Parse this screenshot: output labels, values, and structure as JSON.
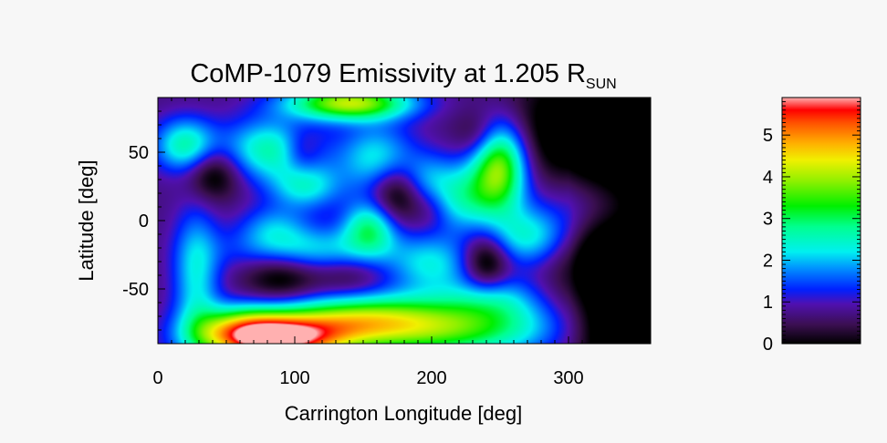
{
  "chart_data": {
    "type": "heatmap",
    "title": "CoMP-1079 Emissivity at 1.205 R",
    "title_subscript": "SUN",
    "xlabel": "Carrington Longitude [deg]",
    "ylabel": "Latitude [deg]",
    "xlim": [
      0,
      360
    ],
    "ylim": [
      -90,
      90
    ],
    "xticks": [
      0,
      100,
      200,
      300
    ],
    "yticks": [
      -50,
      0,
      50
    ],
    "colorbar": {
      "range": [
        0,
        5.9
      ],
      "ticks": [
        0,
        1,
        2,
        3,
        4,
        5
      ],
      "colormap": "rainbow-black",
      "stops": [
        {
          "v": 0.0,
          "color": "#000000"
        },
        {
          "v": 0.45,
          "color": "#3a0f50"
        },
        {
          "v": 0.95,
          "color": "#5010b0"
        },
        {
          "v": 1.3,
          "color": "#0020ff"
        },
        {
          "v": 1.8,
          "color": "#0090ff"
        },
        {
          "v": 2.2,
          "color": "#00f0f0"
        },
        {
          "v": 2.8,
          "color": "#00ff90"
        },
        {
          "v": 3.3,
          "color": "#00f000"
        },
        {
          "v": 3.9,
          "color": "#90f000"
        },
        {
          "v": 4.4,
          "color": "#f0f000"
        },
        {
          "v": 4.8,
          "color": "#ffb000"
        },
        {
          "v": 5.3,
          "color": "#ff5000"
        },
        {
          "v": 5.6,
          "color": "#ff0000"
        },
        {
          "v": 5.9,
          "color": "#ffb0b0"
        }
      ]
    },
    "background_value": 0.7,
    "blobs": [
      {
        "lon": 85,
        "lat": -87,
        "amp": 4.6,
        "slon": 35,
        "slat": 12
      },
      {
        "lon": 60,
        "lat": -78,
        "amp": 1.8,
        "slon": 25,
        "slat": 12
      },
      {
        "lon": 200,
        "lat": -78,
        "amp": 3.0,
        "slon": 65,
        "slat": 16
      },
      {
        "lon": 140,
        "lat": -72,
        "amp": 1.6,
        "slon": 40,
        "slat": 12
      },
      {
        "lon": 140,
        "lat": 86,
        "amp": 3.4,
        "slon": 32,
        "slat": 9
      },
      {
        "lon": 250,
        "lat": 42,
        "amp": 3.0,
        "slon": 14,
        "slat": 22
      },
      {
        "lon": 225,
        "lat": 18,
        "amp": 1.8,
        "slon": 22,
        "slat": 18
      },
      {
        "lon": 160,
        "lat": 45,
        "amp": 1.6,
        "slon": 20,
        "slat": 18
      },
      {
        "lon": 82,
        "lat": 52,
        "amp": 1.9,
        "slon": 25,
        "slat": 16
      },
      {
        "lon": 108,
        "lat": 25,
        "amp": 1.5,
        "slon": 18,
        "slat": 12
      },
      {
        "lon": 155,
        "lat": -5,
        "amp": 2.0,
        "slon": 14,
        "slat": 14
      },
      {
        "lon": 20,
        "lat": 55,
        "amp": 1.9,
        "slon": 16,
        "slat": 14
      },
      {
        "lon": 110,
        "lat": -22,
        "amp": 1.5,
        "slon": 40,
        "slat": 12
      },
      {
        "lon": 200,
        "lat": -32,
        "amp": 1.4,
        "slon": 22,
        "slat": 15
      },
      {
        "lon": 270,
        "lat": -12,
        "amp": 1.6,
        "slon": 22,
        "slat": 15
      },
      {
        "lon": 28,
        "lat": -40,
        "amp": 1.5,
        "slon": 12,
        "slat": 35
      },
      {
        "lon": 85,
        "lat": -5,
        "amp": 1.0,
        "slon": 18,
        "slat": 12
      },
      {
        "lon": 315,
        "lat": 10,
        "amp": 0.7,
        "slon": 30,
        "slat": 18
      },
      {
        "lon": 240,
        "lat": -30,
        "amp": -1.4,
        "slon": 12,
        "slat": 16
      },
      {
        "lon": 40,
        "lat": 35,
        "amp": -1.2,
        "slon": 14,
        "slat": 14
      },
      {
        "lon": 105,
        "lat": 50,
        "amp": -0.8,
        "slon": 10,
        "slat": 12
      },
      {
        "lon": 175,
        "lat": 20,
        "amp": -1.4,
        "slon": 14,
        "slat": 16
      },
      {
        "lon": 90,
        "lat": -40,
        "amp": -1.1,
        "slon": 20,
        "slat": 14
      },
      {
        "lon": 140,
        "lat": -40,
        "amp": -0.6,
        "slon": 18,
        "slat": 12
      },
      {
        "lon": 200,
        "lat": 10,
        "amp": -0.5,
        "slon": 10,
        "slat": 12
      },
      {
        "lon": 235,
        "lat": 62,
        "amp": -0.6,
        "slon": 12,
        "slat": 12
      },
      {
        "lon": 310,
        "lat": 65,
        "amp": -1.3,
        "slon": 40,
        "slat": 30
      },
      {
        "lon": 320,
        "lat": -25,
        "amp": -1.0,
        "slon": 25,
        "slat": 25
      },
      {
        "lon": 330,
        "lat": -80,
        "amp": -1.0,
        "slon": 30,
        "slat": 20
      },
      {
        "lon": 195,
        "lat": 30,
        "amp": 0.8,
        "slon": 14,
        "slat": 14
      },
      {
        "lon": 245,
        "lat": -55,
        "amp": 1.0,
        "slon": 22,
        "slat": 12
      }
    ]
  }
}
